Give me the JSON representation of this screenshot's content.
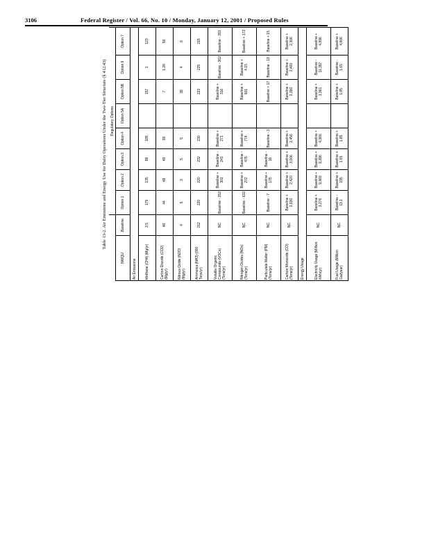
{
  "header": {
    "page_number": "3106",
    "title": "Federal Register / Vol. 66, No. 10 / Monday, January 12, 2001 / Proposed Rules"
  },
  "table": {
    "caption": "Table 13-2. Air Emissions and Energy Use for Dairy Operations Under the Two-Tier Structure (§ 412.43)",
    "group_header": "Regulatory Options",
    "columns": [
      "NWQU",
      "Baseline",
      "Option 1",
      "Option 2",
      "Option 3",
      "Option 4",
      "Option 5A",
      "Option 5B",
      "Option 6",
      "Option 7"
    ],
    "rows": [
      {
        "type": "section",
        "label": "Air Emissions"
      },
      {
        "label": "Methane (CH4) (Mg/yr)",
        "values": [
          "3.5",
          "179",
          "135",
          "98",
          "185",
          "",
          "157",
          "1",
          "123"
        ]
      },
      {
        "label": "Carbon Dioxide (CO2) (Mg/yr)",
        "values": [
          "46",
          "44",
          "48",
          "49",
          "55",
          "",
          "7",
          "1.28",
          "56"
        ]
      },
      {
        "label": "Nitrous Oxide (N2O) (Mg/yr)",
        "values": [
          "4",
          "5",
          "3",
          "5",
          "5",
          "",
          "38",
          "4",
          "6"
        ]
      },
      {
        "label": "Ammonia (NH3) (000 Tons/yr)",
        "values": [
          "212",
          "220",
          "220",
          "232",
          "230",
          "",
          "223",
          "225",
          "215"
        ]
      },
      {
        "label": "Volatile Organic Compounds (VOCs) (Tons/yr)",
        "values": [
          "NC",
          "Baseline - 252",
          "Baseline + 301",
          "Baseline - 241",
          "Baseline + 271",
          "",
          "Baseline + 316",
          "Baseline - 362",
          "Baseline - 391"
        ]
      },
      {
        "label": "Nitrogen Oxides (NOx) (Tons/yr)",
        "values": [
          "NC",
          "Baseline - 632",
          "Baseline + 272",
          "Baseline - 475",
          "Baseline + 774",
          "",
          "Baseline + 601",
          "Baseline + 4.15",
          "Baseline + 172"
        ]
      },
      {
        "label": "Particulate Matter (PM) (Tons/yr)",
        "values": [
          "NC",
          "Baseline - 7",
          "Baseline + 175",
          "Baseline - 16",
          "Baseline - 3",
          "",
          "Baseline + 17",
          "Baseline - 13",
          "Baseline + 15"
        ]
      },
      {
        "label": "Carbon Monoxide (CO) (Tons/yr)",
        "values": [
          "NC",
          "Baseline + 2,930",
          "Baseline + 2,420",
          "Baseline + 3,006",
          "Baseline + 2,456",
          "",
          "Baseline + 2,390",
          "Baseline + 2,460",
          "Baseline + 2,306"
        ]
      },
      {
        "type": "section",
        "label": "Energy Usage"
      },
      {
        "label": "Electricity Usage (Million kWh/yr)",
        "values": [
          "NC",
          "Baseline + 3,276",
          "Baseline + 9,969",
          "Baseline + 9,286",
          "Baseline + 4,366",
          "",
          "Baseline + 1,361",
          "Baseline - 11,397",
          "Baseline + 4,896"
        ]
      },
      {
        "label": "Fuel Usage (Million Gal/year)",
        "values": [
          "NC",
          "Baseline - 13.1",
          "Baseline + 195",
          "Baseline + 1.65",
          "Baseline + 1.85",
          "",
          "Baseline + 1.95",
          "Baseline - 1.65",
          "Baseline + 4,806"
        ]
      }
    ]
  }
}
